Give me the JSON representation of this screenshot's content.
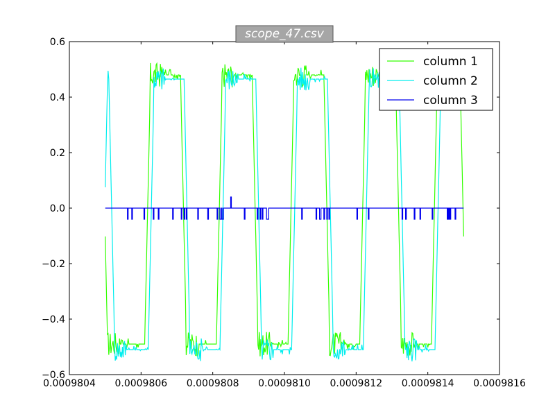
{
  "chart_data": {
    "type": "line",
    "title": "scope_47.csv",
    "xlabel": "",
    "ylabel": "",
    "xlim": [
      0.0009804,
      0.0009816
    ],
    "ylim": [
      -0.6,
      0.6
    ],
    "x_ticks": [
      "0.0009804",
      "0.0009806",
      "0.0009808",
      "0.0009810",
      "0.0009812",
      "0.0009814",
      "0.0009816"
    ],
    "y_ticks": [
      "0.6",
      "0.4",
      "0.2",
      "0.0",
      "−0.2",
      "−0.4",
      "−0.6"
    ],
    "grid": false,
    "legend_position": "upper-right",
    "x_start": 0.0009805,
    "x_end": 0.0009815,
    "series": [
      {
        "name": "column 1",
        "color": "#33ff00",
        "level_high": 0.48,
        "level_low": -0.49,
        "transitions": [
          {
            "x": 0.00098061,
            "to": "high"
          },
          {
            "x": 0.00098071,
            "to": "low"
          },
          {
            "x": 0.00098081,
            "to": "high"
          },
          {
            "x": 0.00098091,
            "to": "low"
          },
          {
            "x": 0.00098101,
            "to": "high"
          },
          {
            "x": 0.00098111,
            "to": "low"
          },
          {
            "x": 0.00098121,
            "to": "high"
          },
          {
            "x": 0.00098131,
            "to": "low"
          },
          {
            "x": 0.00098141,
            "to": "high"
          },
          {
            "x": 0.00098149,
            "to": "low"
          }
        ],
        "initial_state": "low"
      },
      {
        "name": "column 2",
        "color": "#00eeee",
        "level_high": 0.465,
        "level_low": -0.51,
        "transitions": [
          {
            "x": 0.00098051,
            "to": "low"
          },
          {
            "x": 0.00098062,
            "to": "high"
          },
          {
            "x": 0.00098072,
            "to": "low"
          },
          {
            "x": 0.00098082,
            "to": "high"
          },
          {
            "x": 0.00098092,
            "to": "low"
          },
          {
            "x": 0.00098102,
            "to": "high"
          },
          {
            "x": 0.00098112,
            "to": "low"
          },
          {
            "x": 0.00098122,
            "to": "high"
          },
          {
            "x": 0.00098132,
            "to": "low"
          },
          {
            "x": 0.00098142,
            "to": "high"
          }
        ],
        "initial_state": "high"
      },
      {
        "name": "column 3",
        "color": "#0000ee",
        "baseline": 0.0,
        "glitch_low": -0.04,
        "spike": {
          "x": 0.00098085,
          "y": 0.04
        }
      }
    ]
  }
}
